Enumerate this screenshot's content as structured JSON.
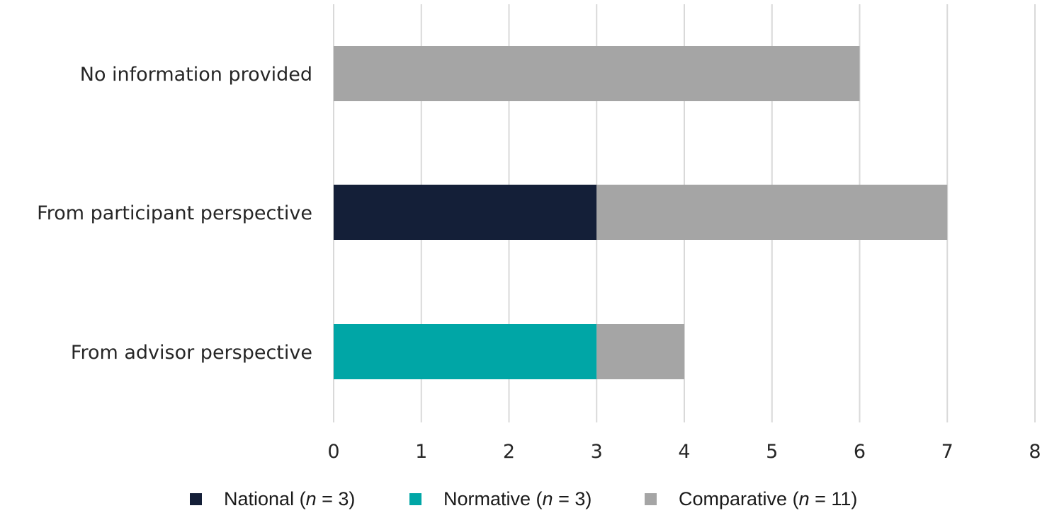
{
  "chart_data": {
    "type": "bar",
    "orientation": "horizontal",
    "stacked": true,
    "categories": [
      "No information provided",
      "From participant perspective",
      "From advisor perspective"
    ],
    "series": [
      {
        "name": "National",
        "n": "3",
        "color": "#141f38",
        "values": [
          0,
          3,
          0
        ]
      },
      {
        "name": "Normative",
        "n": "3",
        "color": "#00a6a6",
        "values": [
          0,
          0,
          3
        ]
      },
      {
        "name": "Comparative",
        "n": "11",
        "color": "#a5a5a5",
        "values": [
          6,
          4,
          1
        ]
      }
    ],
    "xlim": [
      0,
      8
    ],
    "xticks": [
      "0",
      "1",
      "2",
      "3",
      "4",
      "5",
      "6",
      "7",
      "8"
    ],
    "grid": "vertical",
    "legend_position": "bottom"
  }
}
